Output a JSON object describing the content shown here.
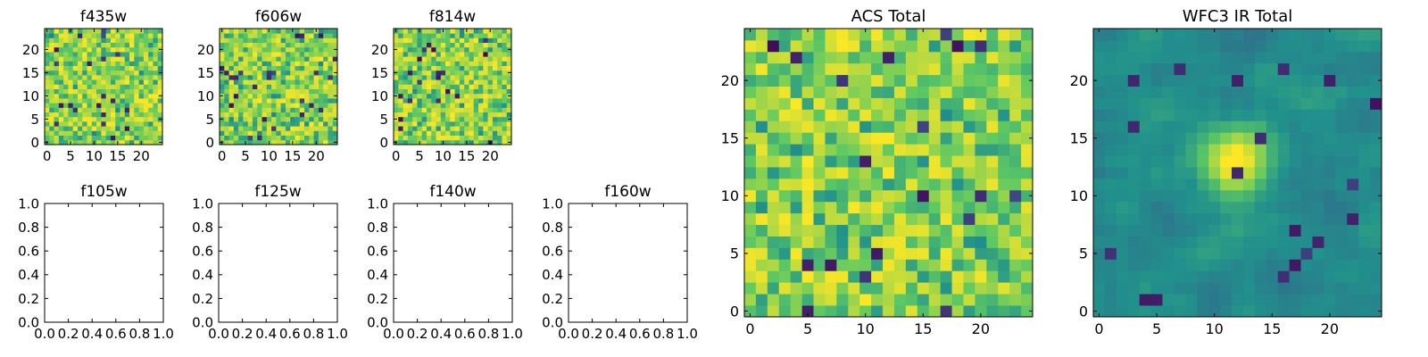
{
  "chart_data": [
    {
      "type": "heatmap",
      "title": "f435w",
      "xticks": [
        "0",
        "5",
        "10",
        "15",
        "20"
      ],
      "yticks": [
        "0",
        "5",
        "10",
        "15",
        "20"
      ],
      "xlim": [
        -0.5,
        24.5
      ],
      "ylim": [
        -0.5,
        24.5
      ],
      "grid_size": [
        25,
        25
      ],
      "seed": 11,
      "colormap": "viridis",
      "z_note": "per-pixel values are noise-like and not individually legible"
    },
    {
      "type": "heatmap",
      "title": "f606w",
      "xticks": [
        "0",
        "5",
        "10",
        "15",
        "20"
      ],
      "yticks": [
        "0",
        "5",
        "10",
        "15",
        "20"
      ],
      "xlim": [
        -0.5,
        24.5
      ],
      "ylim": [
        -0.5,
        24.5
      ],
      "grid_size": [
        25,
        25
      ],
      "seed": 23,
      "colormap": "viridis",
      "z_note": "per-pixel values are noise-like and not individually legible"
    },
    {
      "type": "heatmap",
      "title": "f814w",
      "xticks": [
        "0",
        "5",
        "10",
        "15",
        "20"
      ],
      "yticks": [
        "0",
        "5",
        "10",
        "15",
        "20"
      ],
      "xlim": [
        -0.5,
        24.5
      ],
      "ylim": [
        -0.5,
        24.5
      ],
      "grid_size": [
        25,
        25
      ],
      "seed": 37,
      "colormap": "viridis",
      "z_note": "per-pixel values are noise-like and not individually legible"
    },
    {
      "type": "line",
      "title": "f105w",
      "xticks": [
        "0.0",
        "0.2",
        "0.4",
        "0.6",
        "0.8",
        "1.0"
      ],
      "yticks": [
        "0.0",
        "0.2",
        "0.4",
        "0.6",
        "0.8",
        "1.0"
      ],
      "xlim": [
        0,
        1
      ],
      "ylim": [
        0,
        1
      ],
      "series": []
    },
    {
      "type": "line",
      "title": "f125w",
      "xticks": [
        "0.0",
        "0.2",
        "0.4",
        "0.6",
        "0.8",
        "1.0"
      ],
      "yticks": [
        "0.0",
        "0.2",
        "0.4",
        "0.6",
        "0.8",
        "1.0"
      ],
      "xlim": [
        0,
        1
      ],
      "ylim": [
        0,
        1
      ],
      "series": []
    },
    {
      "type": "line",
      "title": "f140w",
      "xticks": [
        "0.0",
        "0.2",
        "0.4",
        "0.6",
        "0.8",
        "1.0"
      ],
      "yticks": [
        "0.0",
        "0.2",
        "0.4",
        "0.6",
        "0.8",
        "1.0"
      ],
      "xlim": [
        0,
        1
      ],
      "ylim": [
        0,
        1
      ],
      "series": []
    },
    {
      "type": "line",
      "title": "f160w",
      "xticks": [
        "0.0",
        "0.2",
        "0.4",
        "0.6",
        "0.8",
        "1.0"
      ],
      "yticks": [
        "0.0",
        "0.2",
        "0.4",
        "0.6",
        "0.8",
        "1.0"
      ],
      "xlim": [
        0,
        1
      ],
      "ylim": [
        0,
        1
      ],
      "series": []
    },
    {
      "type": "heatmap",
      "title": "ACS Total",
      "xticks": [
        "0",
        "5",
        "10",
        "15",
        "20"
      ],
      "yticks": [
        "0",
        "5",
        "10",
        "15",
        "20"
      ],
      "xlim": [
        -0.5,
        24.5
      ],
      "ylim": [
        -0.5,
        24.5
      ],
      "grid_size": [
        25,
        25
      ],
      "seed": 53,
      "colormap": "viridis",
      "z_note": "per-pixel values are noise-like and not individually legible"
    },
    {
      "type": "heatmap",
      "title": "WFC3 IR Total",
      "xticks": [
        "0",
        "5",
        "10",
        "15",
        "20"
      ],
      "yticks": [
        "0",
        "5",
        "10",
        "15",
        "20"
      ],
      "xlim": [
        -0.5,
        24.5
      ],
      "ylim": [
        -0.5,
        24.5
      ],
      "grid_size": [
        25,
        25
      ],
      "seed": 71,
      "colormap": "viridis",
      "smooth": true,
      "blob": [
        12,
        13
      ],
      "z_note": "smooth noise with a bright source near x=12, y=13; per-pixel values not individually legible"
    }
  ]
}
